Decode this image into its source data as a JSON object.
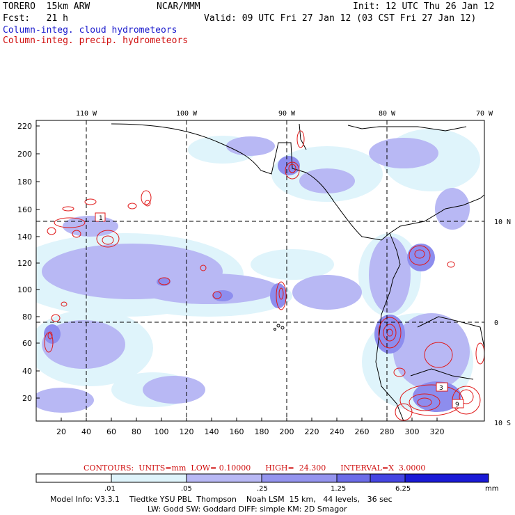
{
  "header": {
    "model_title": "TORERO  15km ARW",
    "center": "NCAR/MMM",
    "init": "Init: 12 UTC Thu 26 Jan 12",
    "fcst": "Fcst:   21 h",
    "valid": "Valid: 09 UTC Fri 27 Jan 12 (03 CST Fri 27 Jan 12)",
    "field_cloud": "Column-integ. cloud hydrometeors",
    "field_precip": "Column-integ. precip. hydrometeors"
  },
  "axes": {
    "lon_labels": [
      "110 W",
      "100 W",
      "90 W",
      "80 W",
      "70 W"
    ],
    "lat_labels": [
      "10 N",
      "0",
      "10 S"
    ],
    "y_ticks": [
      "220",
      "200",
      "180",
      "160",
      "140",
      "120",
      "100",
      "80",
      "60",
      "40",
      "20"
    ],
    "x_ticks": [
      "20",
      "40",
      "60",
      "80",
      "100",
      "120",
      "140",
      "160",
      "180",
      "200",
      "220",
      "240",
      "260",
      "280",
      "300",
      "320"
    ]
  },
  "contour_labels": [
    "1",
    "3",
    "9"
  ],
  "contours": {
    "text": "CONTOURS:  UNITS=mm  LOW= 0.10000      HIGH=  24.300      INTERVAL=X  3.0000"
  },
  "colorbar": {
    "labels": [
      ".01",
      ".05",
      ".25",
      "1.25",
      "6.25"
    ],
    "unit": "mm",
    "colors": [
      "#ffffff",
      "#dff4fb",
      "#b8b8f4",
      "#9494ee",
      "#6c6ce8",
      "#4545e2",
      "#1a1ad6"
    ]
  },
  "footer": {
    "line1": "Model Info: V3.3.1    Tiedtke YSU PBL  Thompson    Noah LSM  15 km,   44 levels,   36 sec",
    "line2": "LW: Godd SW: Goddard DIFF: simple KM: 2D Smagor"
  }
}
